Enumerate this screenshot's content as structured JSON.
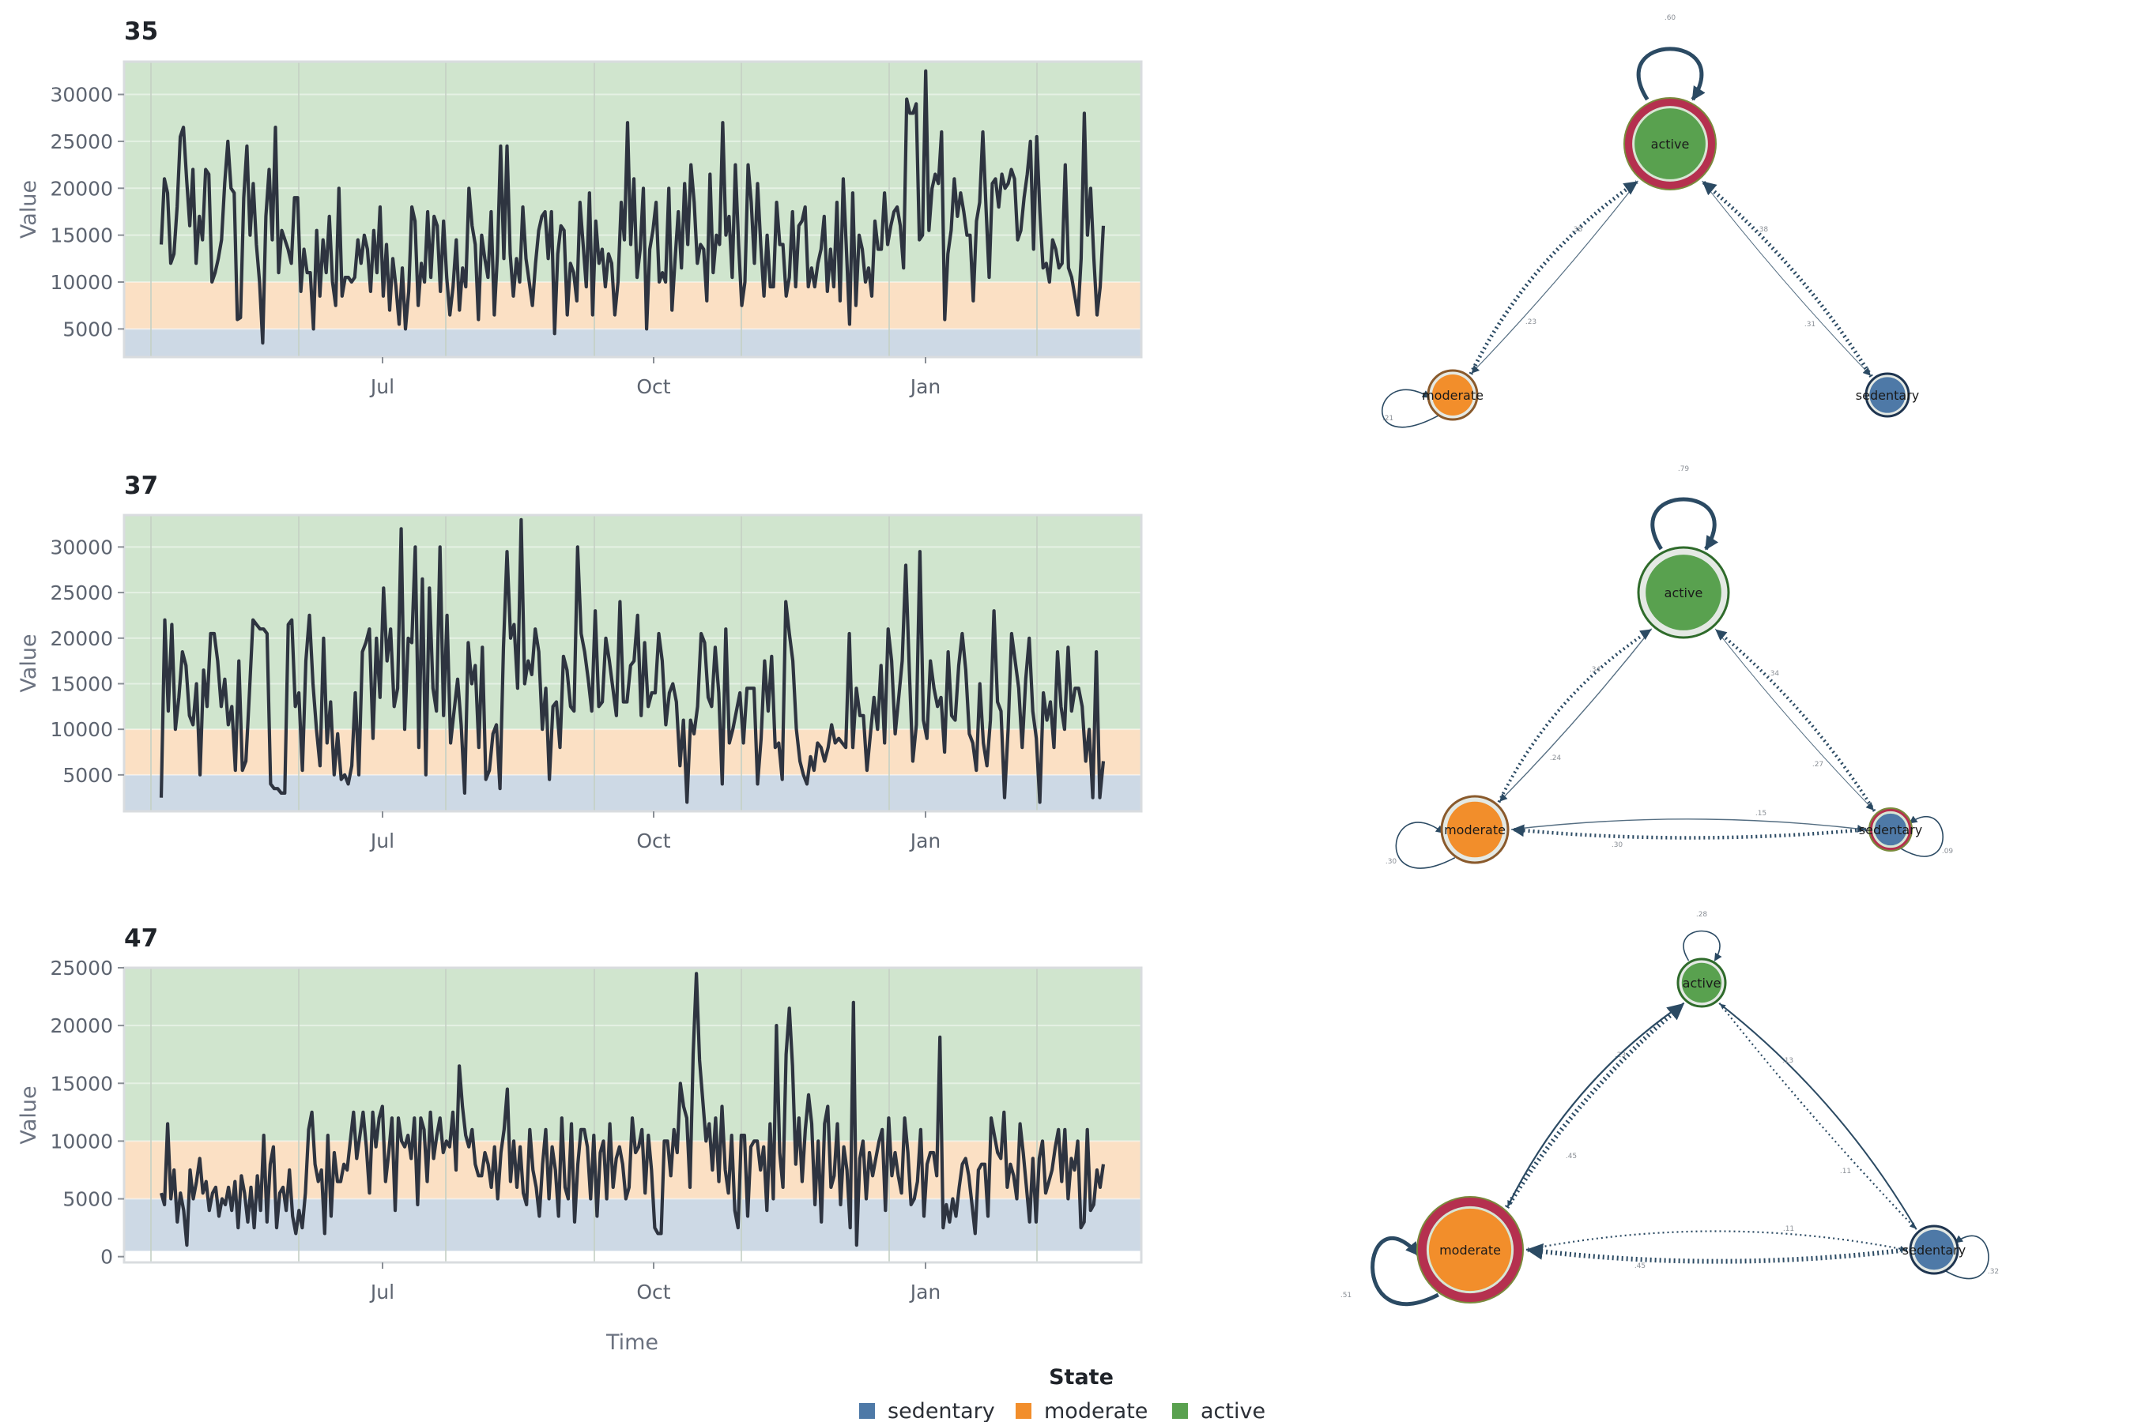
{
  "colors": {
    "sedentary": "#4e79a7",
    "moderate": "#f28e2b",
    "active": "#59a14f",
    "line": "#2e3440",
    "edge": "#2b4a63",
    "highlight": "#b5304f"
  },
  "legend": {
    "title": "State",
    "items": [
      {
        "label": "sedentary",
        "color": "#4e79a7"
      },
      {
        "label": "moderate",
        "color": "#f28e2b"
      },
      {
        "label": "active",
        "color": "#59a14f"
      }
    ]
  },
  "x_axis": {
    "title": "Time",
    "ticks": [
      "Jul",
      "Oct",
      "Jan"
    ]
  },
  "y_axis": {
    "title": "Value"
  },
  "chart_data": [
    {
      "type": "line",
      "title": "35",
      "ylabel": "Value",
      "xlabel": "",
      "x_ticks": [
        "Jul",
        "Oct",
        "Jan"
      ],
      "y_ticks": [
        5000,
        10000,
        15000,
        20000,
        25000,
        30000
      ],
      "ylim": [
        2000,
        33500
      ],
      "bands": [
        {
          "state": "sedentary",
          "from": 2000,
          "to": 5000
        },
        {
          "state": "moderate",
          "from": 5000,
          "to": 10000
        },
        {
          "state": "active",
          "from": 10000,
          "to": 33500
        }
      ],
      "grid": true,
      "seed": 35,
      "values": [
        14000,
        21000,
        19500,
        12000,
        13000,
        18000,
        25500,
        26500,
        21000,
        16000,
        22000,
        12000,
        17000,
        14500,
        22000,
        21500,
        10000,
        11000,
        12500,
        14500,
        20500,
        25000,
        20000,
        19500,
        6000,
        6200,
        19000,
        24500,
        15000,
        20500,
        14000,
        10000,
        3500,
        17000,
        22000,
        14500,
        26500,
        11000,
        15500,
        14500,
        13500,
        12000,
        19000,
        19000,
        9000,
        13500,
        11000,
        11000,
        5000,
        15500,
        8500,
        14500,
        11000,
        17000,
        10000,
        7500,
        20000,
        8500,
        10500,
        10500,
        10000,
        10500,
        14500,
        12000,
        15000,
        13500,
        9000,
        15500,
        11000,
        18000,
        8500,
        14000,
        7000,
        12500,
        9500,
        5500,
        11500,
        5000,
        9000,
        18000,
        16500,
        7500,
        12000,
        10000,
        17500,
        10500,
        17000,
        16000,
        9000,
        16500,
        10500,
        6500,
        9500,
        14500,
        7000,
        11500,
        9500,
        20000,
        16000,
        14000,
        6000,
        15000,
        12500,
        10500,
        17500,
        6500,
        13000,
        24500,
        12500,
        24500,
        13000,
        8500,
        12500,
        10000,
        18000,
        12500,
        10000,
        7500,
        12000,
        15500,
        17000,
        17500,
        12500,
        17500,
        4500,
        13000,
        16000,
        15500,
        6500,
        12000,
        11000,
        8000,
        18500,
        14000,
        9500,
        19500,
        6500,
        16500,
        12000,
        13500,
        9500,
        13000,
        12000,
        6500,
        10000,
        18500,
        14500,
        27000,
        14000,
        21000,
        10500,
        13500,
        20000,
        5000,
        13500,
        15500,
        18500,
        10000,
        11000,
        10000,
        20000,
        7000,
        12500,
        17500,
        11500,
        20500,
        14000,
        22500,
        18500,
        12000,
        14000,
        13500,
        8000,
        21500,
        11000,
        15000,
        14000,
        27000,
        15000,
        17000,
        10500,
        22500,
        14000,
        7500,
        10000,
        22500,
        18500,
        12000,
        20500,
        14000,
        8500,
        15000,
        9500,
        9500,
        18500,
        14000,
        14000,
        8500,
        10500,
        17500,
        9500,
        16000,
        16500,
        18000,
        9500,
        11500,
        9500,
        12000,
        13500,
        17000,
        9000,
        13500,
        9500,
        18500,
        8000,
        21000,
        13500,
        5500,
        19500,
        7500,
        15000,
        13500,
        10000,
        11500,
        8500,
        16500,
        13500,
        13500,
        19500,
        14000,
        16000,
        17500,
        18000,
        16000,
        11500,
        29500,
        28000,
        28000,
        29000,
        14500,
        15000,
        32500,
        15500,
        20000,
        21500,
        20500,
        26000,
        6000,
        13000,
        15500,
        21000,
        17000,
        19500,
        17500,
        15000,
        15000,
        8000,
        16500,
        18500,
        26000,
        18000,
        10500,
        20500,
        21000,
        18000,
        21500,
        20000,
        20500,
        22000,
        21000,
        14500,
        15500,
        19000,
        21500,
        25000,
        13500,
        25500,
        17500,
        11500,
        12000,
        10000,
        14500,
        13500,
        11500,
        12000,
        22500,
        11500,
        10500,
        8500,
        6500,
        12500,
        28000,
        15000,
        20000,
        12500,
        6500,
        9500,
        16000
      ],
      "gap": {
        "start": 200,
        "end": 220
      }
    },
    {
      "type": "line",
      "title": "37",
      "ylabel": "Value",
      "xlabel": "",
      "x_ticks": [
        "Jul",
        "Oct",
        "Jan"
      ],
      "y_ticks": [
        5000,
        10000,
        15000,
        20000,
        25000,
        30000
      ],
      "ylim": [
        1000,
        33500
      ],
      "bands": [
        {
          "state": "sedentary",
          "from": 1000,
          "to": 5000
        },
        {
          "state": "moderate",
          "from": 5000,
          "to": 10000
        },
        {
          "state": "active",
          "from": 10000,
          "to": 33500
        }
      ],
      "grid": true,
      "seed": 37,
      "values": [
        2500,
        22000,
        12000,
        21500,
        10000,
        13500,
        18500,
        17000,
        11500,
        10500,
        15000,
        5000,
        16500,
        12500,
        20500,
        20500,
        17500,
        12500,
        15500,
        10500,
        12500,
        5500,
        17500,
        5500,
        6500,
        14000,
        22000,
        21500,
        21000,
        21000,
        20500,
        4000,
        3500,
        3500,
        3000,
        3000,
        21500,
        22000,
        12500,
        14000,
        5500,
        17500,
        22500,
        15000,
        10000,
        6000,
        20000,
        8500,
        13000,
        5000,
        9500,
        4500,
        5000,
        4000,
        6000,
        14000,
        5000,
        18500,
        19500,
        21000,
        9000,
        20000,
        13500,
        25500,
        17500,
        21000,
        12500,
        14500,
        32000,
        10000,
        20000,
        19500,
        30000,
        8000,
        26500,
        5000,
        25500,
        14500,
        12000,
        30000,
        11500,
        22500,
        8500,
        12000,
        15500,
        10500,
        3000,
        19500,
        15000,
        17000,
        8000,
        19000,
        4500,
        5500,
        9500,
        10500,
        3500,
        19000,
        29500,
        20000,
        21500,
        14500,
        33000,
        15000,
        17500,
        16000,
        21000,
        18500,
        10000,
        14500,
        4500,
        12500,
        13000,
        8000,
        18000,
        16500,
        12500,
        12000,
        30000,
        20500,
        18500,
        15500,
        12000,
        23000,
        12500,
        13000,
        20000,
        17500,
        14500,
        11500,
        24000,
        13000,
        13000,
        17000,
        17500,
        22500,
        11500,
        19500,
        12500,
        14000,
        14000,
        20500,
        17500,
        10500,
        14000,
        15000,
        13000,
        6000,
        11000,
        2000,
        11000,
        9500,
        12500,
        20500,
        19500,
        13500,
        12500,
        19000,
        14000,
        4000,
        21000,
        8500,
        10000,
        12000,
        14000,
        8500,
        14500,
        14500,
        14500,
        4000,
        9000,
        17500,
        12000,
        18000,
        8000,
        8500,
        4500,
        24000,
        20500,
        17500,
        10000,
        6500,
        5000,
        4000,
        7000,
        5500,
        8500,
        8000,
        6500,
        8000,
        10500,
        8500,
        9000,
        8500,
        8000,
        20500,
        8000,
        14500,
        11500,
        11500,
        5500,
        9500,
        13500,
        10000,
        17000,
        8500,
        21000,
        17500,
        9500,
        13500,
        17500,
        28000,
        16500,
        6500,
        10500,
        29500,
        11000,
        9000,
        17500,
        14500,
        12500,
        13500,
        7500,
        18500,
        11500,
        11000,
        17000,
        20500,
        16500,
        9500,
        8500,
        5500,
        15000,
        8500,
        6000,
        11000,
        23000,
        13000,
        12000,
        2500,
        10000,
        20500,
        17500,
        14500,
        8000,
        15500,
        20000,
        12000,
        9000,
        2000,
        14000,
        11000,
        13000,
        8000,
        18500,
        12500,
        10000,
        19000,
        12000,
        14500,
        14500,
        12500,
        6500,
        10000,
        2500,
        18500,
        2500,
        6500
      ],
      "gap": null
    },
    {
      "type": "line",
      "title": "47",
      "ylabel": "Value",
      "xlabel": "Time",
      "x_ticks": [
        "Jul",
        "Oct",
        "Jan"
      ],
      "y_ticks": [
        0,
        5000,
        10000,
        15000,
        20000,
        25000
      ],
      "ylim": [
        -500,
        25000
      ],
      "bands": [
        {
          "state": "sedentary",
          "from": 500,
          "to": 5000
        },
        {
          "state": "moderate",
          "from": 5000,
          "to": 10000
        },
        {
          "state": "active",
          "from": 10000,
          "to": 25000
        }
      ],
      "grid": true,
      "seed": 47,
      "values": [
        5500,
        4500,
        11500,
        5000,
        7500,
        3000,
        5500,
        4000,
        1000,
        7500,
        5000,
        6500,
        8500,
        5500,
        6500,
        4000,
        5500,
        6000,
        3500,
        5000,
        4500,
        6000,
        4000,
        6500,
        2500,
        7000,
        5500,
        3000,
        6000,
        2500,
        7000,
        4000,
        10500,
        3000,
        8000,
        9500,
        2500,
        5500,
        6000,
        4000,
        7500,
        3500,
        2000,
        4000,
        2500,
        5500,
        11000,
        12500,
        8000,
        6500,
        7500,
        2000,
        10500,
        3500,
        9000,
        6500,
        6500,
        8000,
        7500,
        10000,
        12500,
        8500,
        10500,
        12500,
        9500,
        5500,
        12500,
        9500,
        12000,
        13000,
        6500,
        9000,
        12000,
        4000,
        12000,
        10000,
        9500,
        10500,
        8500,
        12000,
        4500,
        12000,
        11000,
        6500,
        12500,
        8500,
        10500,
        12000,
        9000,
        10000,
        9500,
        12500,
        7500,
        16500,
        13000,
        10500,
        9500,
        11000,
        8000,
        7000,
        7000,
        9000,
        8000,
        6000,
        9500,
        5000,
        9000,
        11000,
        14500,
        6500,
        10000,
        6000,
        9500,
        5500,
        4500,
        11000,
        7500,
        6000,
        3500,
        8000,
        11000,
        5000,
        9500,
        7500,
        3500,
        12000,
        6000,
        5000,
        11500,
        3000,
        8000,
        11000,
        11000,
        9500,
        5000,
        10500,
        3500,
        9000,
        10000,
        5000,
        11500,
        6000,
        8500,
        9500,
        8000,
        5000,
        6000,
        12000,
        9000,
        9500,
        11000,
        5500,
        10500,
        7500,
        2500,
        2000,
        2000,
        10000,
        10000,
        7000,
        11000,
        9000,
        15000,
        13000,
        12000,
        6000,
        17500,
        24500,
        17000,
        13500,
        10000,
        11500,
        7500,
        12000,
        6500,
        13000,
        7500,
        5500,
        10500,
        4000,
        2500,
        10500,
        10500,
        3500,
        9500,
        10000,
        10000,
        7500,
        9500,
        4000,
        11500,
        5000,
        20000,
        9000,
        6000,
        17500,
        21500,
        16500,
        8000,
        12000,
        6500,
        11000,
        14000,
        11500,
        4500,
        10000,
        3000,
        11500,
        13000,
        6000,
        7000,
        11500,
        4500,
        9500,
        7500,
        2500,
        22000,
        1000,
        8500,
        10000,
        5000,
        9000,
        7000,
        8500,
        10000,
        11000,
        4000,
        12000,
        7000,
        9000,
        7000,
        5500,
        12000,
        9000,
        4500,
        5000,
        6500,
        11000,
        3500,
        8000,
        9000,
        9000,
        7000,
        19000,
        2500,
        4500,
        3000,
        5000,
        3500,
        6000,
        8000,
        8500,
        7000,
        4500,
        2000,
        7500,
        8000,
        8000,
        3500,
        12000,
        10500,
        9000,
        8500,
        12500,
        6000,
        8000,
        7000,
        5000,
        11500,
        9000,
        6000,
        3000,
        8500,
        3000,
        8500,
        10000,
        5500,
        6500,
        7500,
        9500,
        11000,
        6500,
        11000,
        5000,
        8500,
        7500,
        10000,
        2500,
        3000,
        11000,
        4000,
        4500,
        7500,
        6000,
        8000
      ],
      "gap": null
    }
  ],
  "networks": [
    {
      "nodes": [
        {
          "id": "active",
          "label": "active",
          "highlight": true
        },
        {
          "id": "moderate",
          "label": "moderate",
          "highlight": false
        },
        {
          "id": "sedentary",
          "label": "sedentary",
          "highlight": false
        }
      ],
      "self_labels": {
        "active": ".60",
        "moderate": ".21",
        "sedentary": ""
      },
      "edge_labels": [
        ".38",
        ".23",
        ".38",
        ".31"
      ]
    },
    {
      "nodes": [
        {
          "id": "active",
          "label": "active",
          "highlight": false
        },
        {
          "id": "moderate",
          "label": "moderate",
          "highlight": false
        },
        {
          "id": "sedentary",
          "label": "sedentary",
          "highlight": true
        }
      ],
      "self_labels": {
        "active": ".79",
        "moderate": ".30",
        "sedentary": ".09"
      },
      "edge_labels": [
        ".34",
        ".24",
        ".34",
        ".27",
        ".15",
        ".30"
      ]
    },
    {
      "nodes": [
        {
          "id": "active",
          "label": "active",
          "highlight": false
        },
        {
          "id": "moderate",
          "label": "moderate",
          "highlight": true
        },
        {
          "id": "sedentary",
          "label": "sedentary",
          "highlight": false
        }
      ],
      "self_labels": {
        "active": ".28",
        "moderate": ".51",
        "sedentary": ".32"
      },
      "edge_labels": [
        ".23",
        ".45",
        ".13",
        ".11",
        ".11",
        ".45"
      ]
    }
  ]
}
